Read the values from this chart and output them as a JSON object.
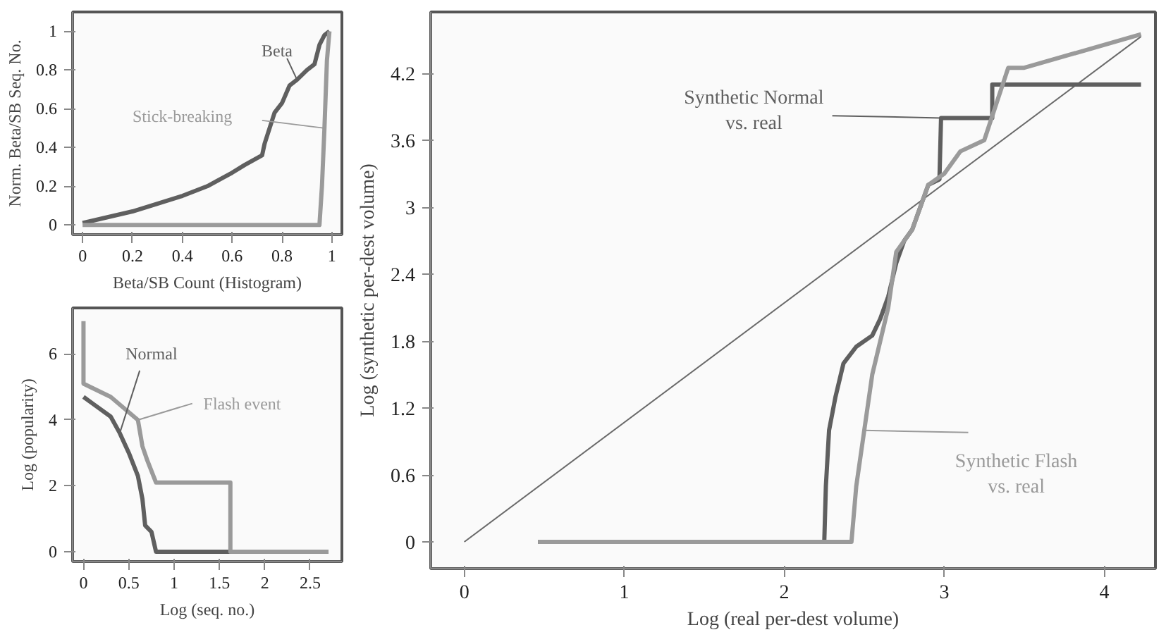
{
  "chart_data": [
    {
      "type": "line",
      "xlabel": "Beta/SB Count (Histogram)",
      "ylabel": "Norm. Beta/SB Seq. No.",
      "xlim": [
        -0.04,
        1.04
      ],
      "ylim": [
        -0.05,
        1.1
      ],
      "xticks": [
        0,
        0.2,
        0.4,
        0.6,
        0.8,
        1
      ],
      "yticks": [
        0,
        0.2,
        0.4,
        0.6,
        0.8,
        1
      ],
      "grid": false,
      "marker": "none",
      "line_style": "solid",
      "series": [
        {
          "name": "Beta",
          "color": "#5f5f5f",
          "x": [
            0,
            0.1,
            0.2,
            0.3,
            0.4,
            0.5,
            0.6,
            0.65,
            0.72,
            0.73,
            0.75,
            0.77,
            0.8,
            0.83,
            0.86,
            0.9,
            0.93,
            0.95,
            0.97,
            0.99
          ],
          "values": [
            0.01,
            0.04,
            0.07,
            0.11,
            0.15,
            0.2,
            0.27,
            0.31,
            0.36,
            0.42,
            0.5,
            0.58,
            0.63,
            0.72,
            0.75,
            0.8,
            0.83,
            0.93,
            0.98,
            1.0
          ]
        },
        {
          "name": "Stick-breaking",
          "color": "#9a9a9a",
          "x": [
            0,
            0.95,
            0.96,
            0.97,
            0.98,
            0.99
          ],
          "values": [
            0,
            0,
            0.2,
            0.5,
            0.85,
            1.0
          ]
        }
      ]
    },
    {
      "type": "line",
      "xlabel": "Log (seq. no.)",
      "ylabel": "Log (popularity)",
      "xlim": [
        -0.12,
        2.85
      ],
      "ylim": [
        -0.3,
        7.4
      ],
      "xticks": [
        0,
        0.5,
        1,
        1.5,
        2,
        2.5
      ],
      "yticks": [
        0,
        2,
        4,
        6
      ],
      "grid": false,
      "marker": "none",
      "line_style": "solid",
      "series": [
        {
          "name": "Normal",
          "color": "#5f5f5f",
          "x": [
            0,
            0.1,
            0.3,
            0.4,
            0.5,
            0.6,
            0.65,
            0.68,
            0.75,
            0.8,
            2.7
          ],
          "values": [
            4.7,
            4.5,
            4.1,
            3.6,
            3.0,
            2.3,
            1.6,
            0.8,
            0.6,
            0,
            0
          ]
        },
        {
          "name": "Flash event",
          "color": "#9a9a9a",
          "x": [
            0,
            0,
            0.3,
            0.6,
            0.65,
            0.7,
            0.8,
            1.62,
            1.62,
            2.7
          ],
          "values": [
            7.0,
            5.1,
            4.7,
            4.0,
            3.2,
            2.8,
            2.1,
            2.1,
            0,
            0
          ]
        }
      ]
    },
    {
      "type": "line",
      "xlabel": "Log (real per-dest volume)",
      "ylabel": "Log (synthetic per-dest volume)",
      "xlim": [
        -0.21,
        4.32
      ],
      "ylim": [
        -0.24,
        4.75
      ],
      "xticks": [
        0,
        1,
        2,
        3,
        4
      ],
      "yticks": [
        0,
        0.6,
        1.2,
        1.8,
        2.4,
        3,
        3.6,
        4.2
      ],
      "grid": false,
      "marker": "none",
      "line_style": "solid",
      "series": [
        {
          "color": "#6a6a6a",
          "x": [
            0,
            4.23
          ],
          "values": [
            0,
            4.53
          ]
        },
        {
          "name": "Synthetic Normal\nvs. real",
          "color": "#5f5f5f",
          "x": [
            0.46,
            2.25,
            2.26,
            2.28,
            2.32,
            2.37,
            2.45,
            2.55,
            2.6,
            2.65,
            2.7,
            2.75,
            2.8,
            2.85,
            2.9,
            2.97,
            2.98,
            3.3,
            3.3,
            4.23
          ],
          "values": [
            0,
            0,
            0.5,
            1.0,
            1.3,
            1.6,
            1.75,
            1.85,
            2.0,
            2.2,
            2.5,
            2.7,
            2.8,
            3.0,
            3.2,
            3.25,
            3.8,
            3.8,
            4.1,
            4.1
          ]
        },
        {
          "name": "Synthetic Flash\nvs. real",
          "color": "#9a9a9a",
          "x": [
            0.46,
            2.42,
            2.45,
            2.5,
            2.55,
            2.6,
            2.65,
            2.7,
            2.8,
            2.9,
            3.0,
            3.1,
            3.25,
            3.4,
            3.5,
            4.23
          ],
          "values": [
            0,
            0,
            0.5,
            1.0,
            1.5,
            1.8,
            2.1,
            2.6,
            2.8,
            3.2,
            3.3,
            3.5,
            3.6,
            4.25,
            4.25,
            4.55
          ]
        }
      ]
    }
  ]
}
